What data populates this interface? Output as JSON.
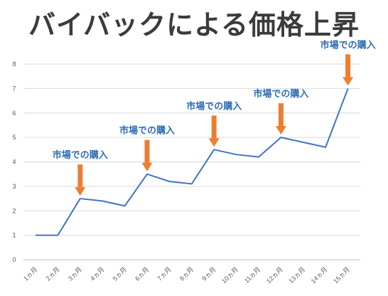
{
  "chart_data": {
    "type": "line",
    "title": "バイバックによる価格上昇",
    "categories": [
      "1ヵ月",
      "2ヵ月",
      "3ヵ月",
      "4ヵ月",
      "5ヵ月",
      "6ヵ月",
      "7ヵ月",
      "8ヵ月",
      "9ヵ月",
      "10ヵ月",
      "11ヵ月",
      "12ヵ月",
      "13ヵ月",
      "14ヵ月",
      "15ヵ月"
    ],
    "values": [
      1,
      1,
      2.5,
      2.4,
      2.2,
      3.5,
      3.2,
      3.1,
      4.5,
      4.3,
      4.2,
      5.0,
      4.8,
      4.6,
      7.0
    ],
    "ylim": [
      0,
      8
    ],
    "yticks": [
      0,
      1,
      2,
      3,
      4,
      5,
      6,
      7,
      8
    ],
    "grid": true,
    "xlabel": "",
    "ylabel": "",
    "series_color": "#4472c4",
    "annotations": [
      {
        "label": "市場での購入",
        "at_category": "3ヵ月"
      },
      {
        "label": "市場での購入",
        "at_category": "6ヵ月"
      },
      {
        "label": "市場での購入",
        "at_category": "9ヵ月"
      },
      {
        "label": "市場での購入",
        "at_category": "12ヵ月"
      },
      {
        "label": "市場での購入",
        "at_category": "15ヵ月"
      }
    ],
    "arrow_color": "#ed7d31",
    "annotation_color": "#2e6db4"
  }
}
